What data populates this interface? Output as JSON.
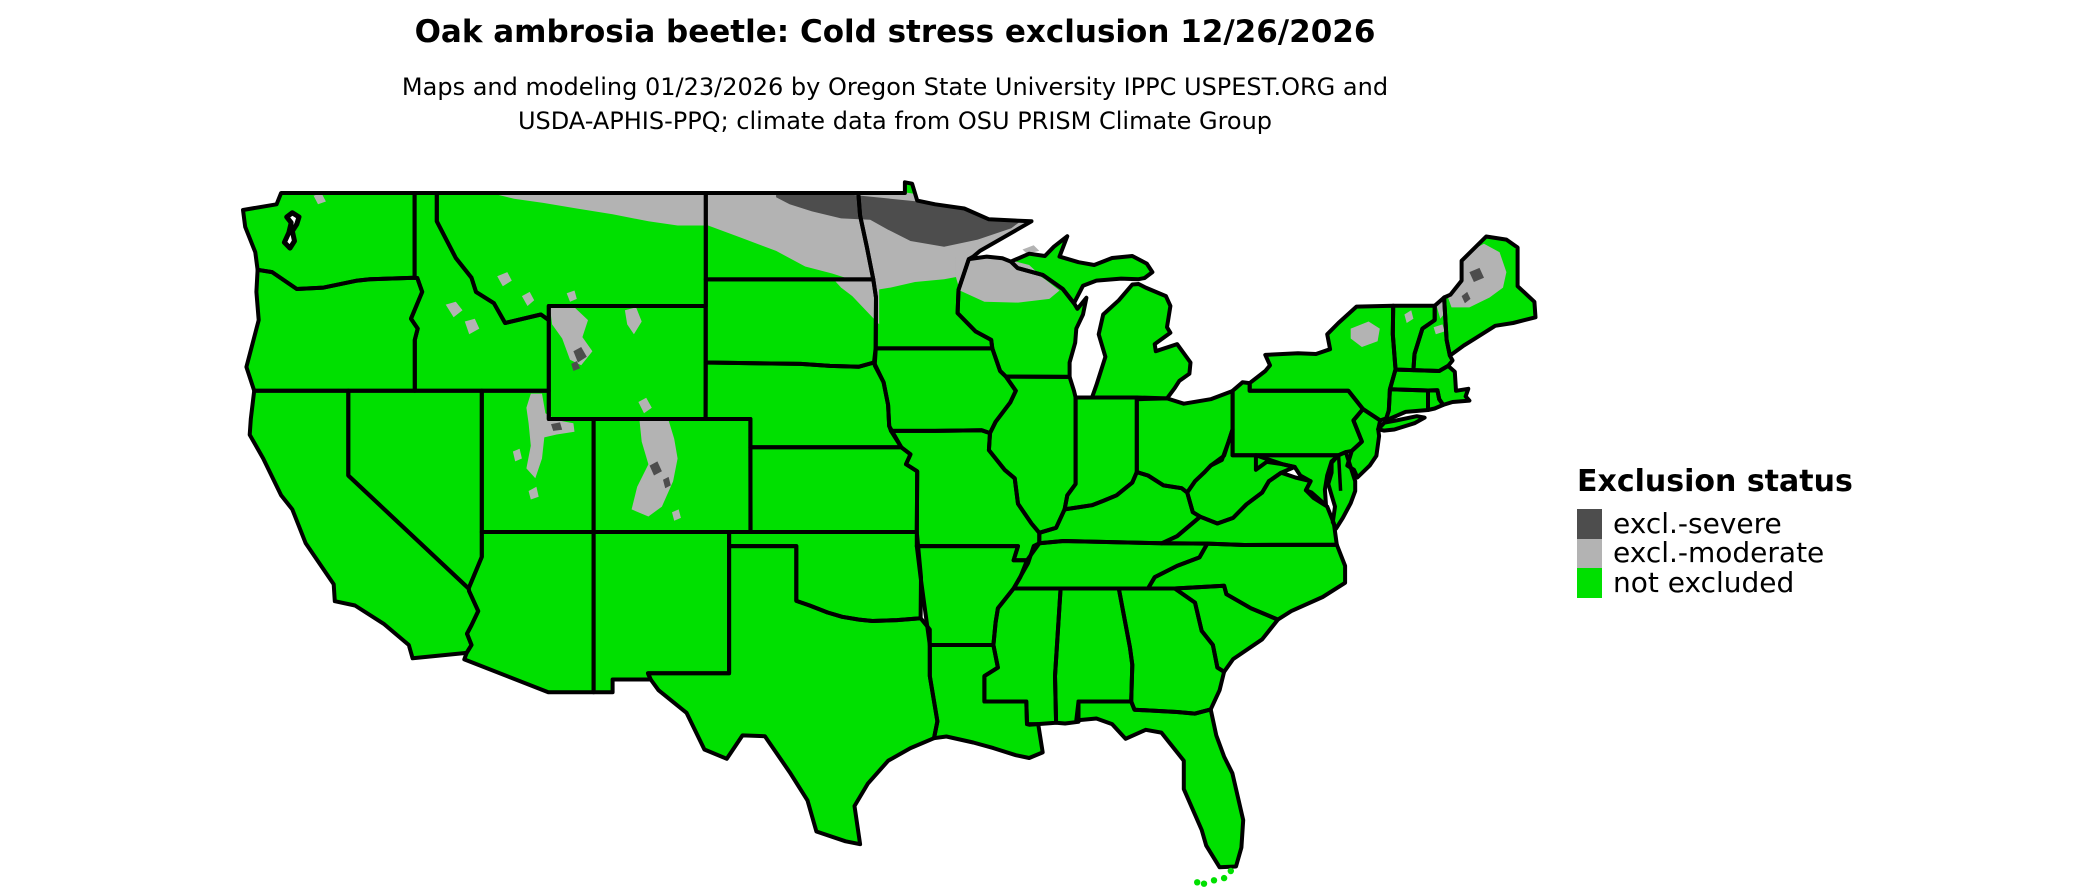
{
  "header": {
    "title": "Oak ambrosia beetle: Cold stress exclusion 12/26/2026",
    "subtitle_line1": "Maps and modeling 01/23/2026 by Oregon State University IPPC USPEST.ORG and",
    "subtitle_line2": "USDA-APHIS-PPQ; climate data from OSU PRISM Climate Group"
  },
  "legend": {
    "title": "Exclusion status",
    "items": [
      {
        "label": "excl.-severe",
        "color": "#4d4d4d"
      },
      {
        "label": "excl.-moderate",
        "color": "#b3b3b3"
      },
      {
        "label": "not excluded",
        "color": "#00e000"
      }
    ]
  },
  "map": {
    "background_color": "#ffffff",
    "border_color": "#000000",
    "status_colors": {
      "not_excluded": "#00e000",
      "moderate": "#b3b3b3",
      "severe": "#4d4d4d"
    }
  }
}
